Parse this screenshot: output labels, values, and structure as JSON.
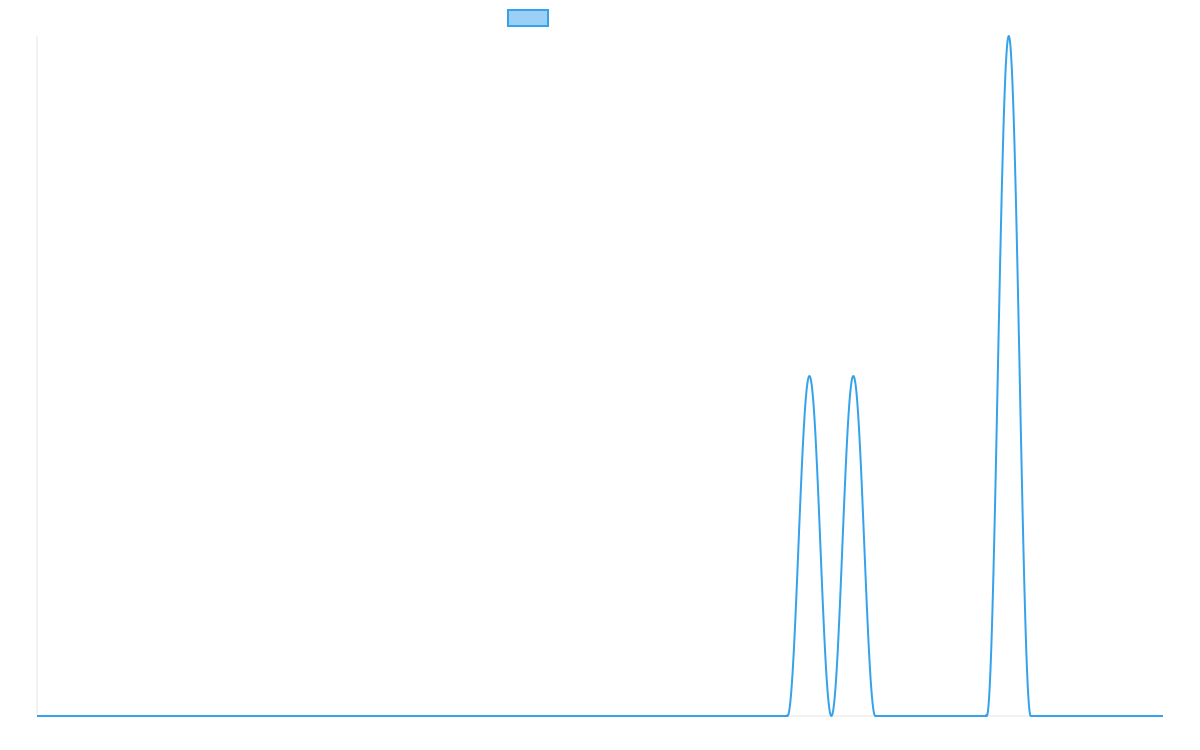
{
  "chart_data": {
    "type": "line",
    "title": "",
    "xlabel": "",
    "ylabel": "",
    "x_ticks_visible": false,
    "y_ticks_visible": false,
    "grid": false,
    "legend": {
      "placement": "top-center",
      "entries": [
        {
          "name": "",
          "color": "#36a2eb",
          "fill": "#9ad0f5"
        }
      ]
    },
    "xlim": [
      0,
      1
    ],
    "ylim": [
      0,
      1
    ],
    "series": [
      {
        "name": "",
        "color": "#36a2eb",
        "peaks": [
          {
            "start": 0.666,
            "center": 0.686,
            "end": 0.705,
            "height": 0.5
          },
          {
            "start": 0.705,
            "center": 0.725,
            "end": 0.744,
            "height": 0.5
          },
          {
            "start": 0.843,
            "center": 0.863,
            "end": 0.882,
            "height": 1.0
          }
        ]
      }
    ]
  }
}
